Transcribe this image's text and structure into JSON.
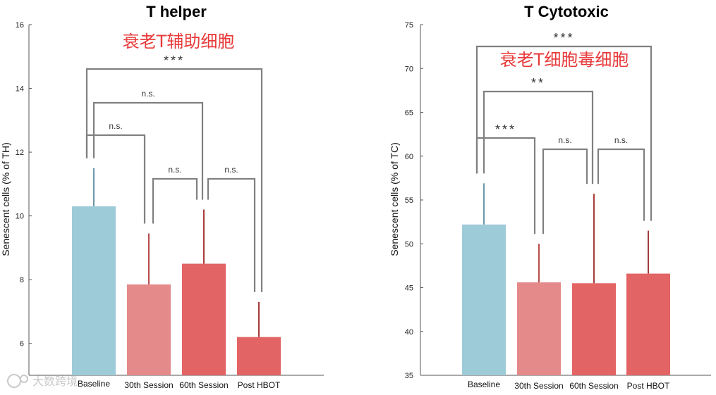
{
  "colors": {
    "baseline": "#9ecbd8",
    "session30": "#e58a8a",
    "session60": "#e36464",
    "post_hbot": "#e36464",
    "annotation": "#e83a3a",
    "bracket": "#808080"
  },
  "watermark": "大数跨境",
  "chart_data": [
    {
      "type": "bar",
      "title": "T helper",
      "annotation": "衰老T辅助细胞",
      "ylabel": "Senescent cells (% of TH)",
      "categories": [
        "Baseline",
        "30th Session",
        "60th Session",
        "Post HBOT"
      ],
      "values": [
        10.3,
        7.85,
        8.5,
        6.2
      ],
      "error_upper": [
        11.5,
        9.45,
        10.2,
        7.3
      ],
      "ylim": [
        5.0,
        16.0
      ],
      "yticks": [
        "6",
        "8",
        "10",
        "12",
        "14",
        "16"
      ],
      "significance": [
        {
          "from": 0,
          "to": 1,
          "label": "n.s."
        },
        {
          "from": 1,
          "to": 2,
          "label": "n.s."
        },
        {
          "from": 2,
          "to": 3,
          "label": "n.s."
        },
        {
          "from": 0,
          "to": 2,
          "label": "n.s."
        },
        {
          "from": 0,
          "to": 3,
          "label": "***"
        }
      ]
    },
    {
      "type": "bar",
      "title": "T Cytotoxic",
      "annotation": "衰老T细胞毒细胞",
      "ylabel": "Senescent cells (% of TC)",
      "categories": [
        "Baseline",
        "30th Session",
        "60th Session",
        "Post HBOT"
      ],
      "values": [
        52.2,
        45.6,
        45.5,
        46.6
      ],
      "error_upper": [
        56.9,
        50.0,
        55.7,
        51.5
      ],
      "ylim": [
        35,
        75
      ],
      "yticks": [
        "35",
        "40",
        "45",
        "50",
        "55",
        "60",
        "65",
        "70",
        "75"
      ],
      "significance": [
        {
          "from": 0,
          "to": 1,
          "label": "***"
        },
        {
          "from": 1,
          "to": 2,
          "label": "n.s."
        },
        {
          "from": 2,
          "to": 3,
          "label": "n.s."
        },
        {
          "from": 0,
          "to": 2,
          "label": "**"
        },
        {
          "from": 0,
          "to": 3,
          "label": "***"
        }
      ]
    }
  ]
}
